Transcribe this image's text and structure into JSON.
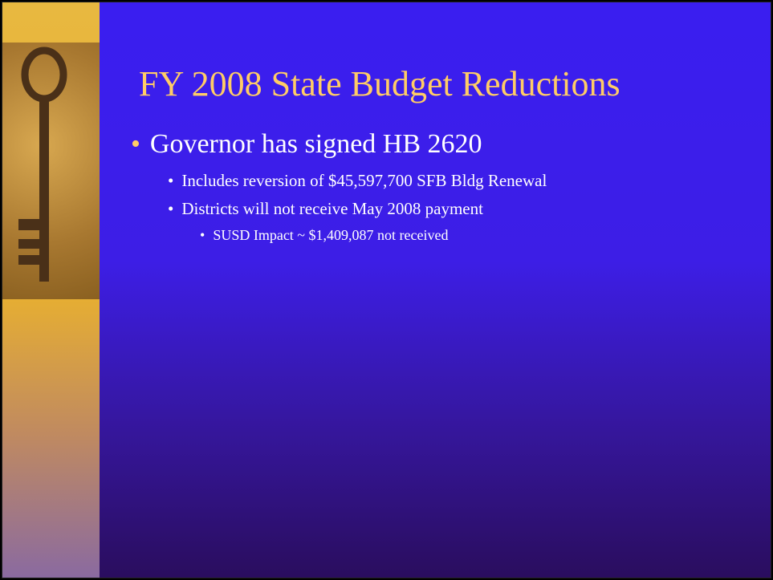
{
  "slide": {
    "title": "FY 2008 State Budget Reductions",
    "bullets": [
      {
        "text": "Governor has signed HB 2620",
        "children": [
          {
            "text": "Includes reversion of $45,597,700 SFB Bldg Renewal",
            "children": []
          },
          {
            "text": "Districts will not receive May 2008 payment",
            "children": [
              {
                "text": "SUSD Impact ~ $1,409,087 not received"
              }
            ]
          }
        ]
      }
    ]
  }
}
